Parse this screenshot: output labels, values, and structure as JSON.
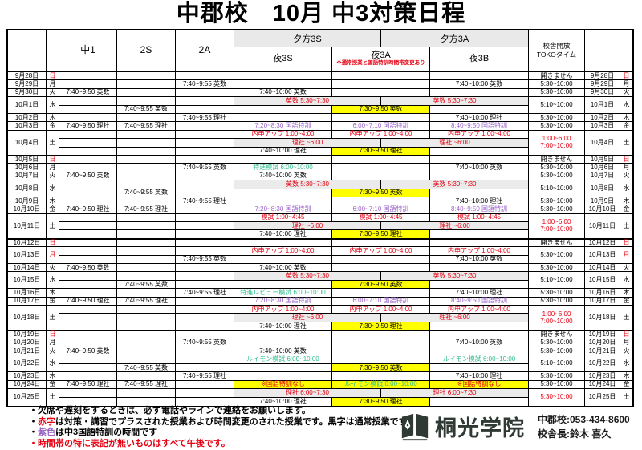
{
  "title": "中郡校　10月 中3対策日程",
  "header": {
    "class_cols": [
      "中1",
      "2S",
      "2A"
    ],
    "evening_groups": [
      "夕方3S",
      "夕方3A"
    ],
    "night_cols": [
      "夜3S",
      "夜3A",
      "夜3B"
    ],
    "night_3a_note": "※通常授業と国語特訓時間帯変更あり",
    "toko_line1": "校舎開放",
    "toko_line2": "TOKOタイム"
  },
  "colors": {
    "red": "#e60012",
    "purple": "#9a63c8",
    "green": "#2fbd8a",
    "yellow": "#ffff00",
    "gray_band": "#ebebeb",
    "header_gray": "#e9e9e9",
    "logo": "#2f3a34"
  },
  "days": [
    {
      "date": "9月28日",
      "dow": "日",
      "red_dow": true,
      "toko": {
        "lines": [
          "開きません"
        ]
      },
      "subrows": [
        {
          "n": {
            "type": "cols",
            "cells": [
              null,
              null,
              null
            ]
          }
        }
      ]
    },
    {
      "date": "9月29日",
      "dow": "月",
      "toko": {
        "lines": [
          "5:30~10:00"
        ]
      },
      "subrows": [
        {
          "a2": {
            "t": "7:40~9:55 英数"
          },
          "n": {
            "type": "cols",
            "cells": [
              null,
              null,
              {
                "t": "7:40~10:00 英数"
              }
            ]
          }
        }
      ]
    },
    {
      "date": "9月30日",
      "dow": "火",
      "toko": {
        "lines": [
          "5:30~10:00"
        ]
      },
      "subrows": [
        {
          "c1": {
            "t": "7:40~9:50 英数"
          },
          "n": {
            "type": "cols",
            "cells": [
              {
                "t": "7:40~10:00 英数"
              },
              null,
              null
            ]
          }
        }
      ]
    },
    {
      "date": "10月1日",
      "dow": "水",
      "toko": {
        "lines": [
          "5:10~10:00"
        ]
      },
      "subrows": [
        {
          "n": {
            "type": "split",
            "cells": [
              {
                "t": "英数 5:30~7:30",
                "c": "red",
                "bg": "gray"
              },
              {
                "t": "英数 5:30~7:30",
                "c": "red",
                "bg": "gray"
              }
            ]
          }
        },
        {
          "s2": {
            "t": "7:40~9:55 英数"
          },
          "n": {
            "type": "cols",
            "cells": [
              null,
              {
                "t": "7:30~9:50 英数",
                "bg": "yellow"
              },
              null
            ]
          }
        }
      ]
    },
    {
      "date": "10月2日",
      "dow": "木",
      "toko": {
        "lines": [
          "5:30~10:00"
        ]
      },
      "subrows": [
        {
          "a2": {
            "t": "7:40~9:55 理社"
          },
          "n": {
            "type": "cols",
            "cells": [
              null,
              null,
              {
                "t": "7:40~10:00 理社"
              }
            ]
          }
        }
      ]
    },
    {
      "date": "10月3日",
      "dow": "金",
      "toko": {
        "lines": [
          "5:30~10:00"
        ]
      },
      "subrows": [
        {
          "c1": {
            "t": "7:40~9:50 理社"
          },
          "s2": {
            "t": "7:40~9:55 理社"
          },
          "n": {
            "type": "cols",
            "cells": [
              {
                "t": "7:20~8:30 国語特訓",
                "c": "purple"
              },
              {
                "t": "6:00~7:10 国語特訓",
                "c": "purple"
              },
              {
                "t": "8:40~9:50 国語特訓",
                "c": "purple"
              }
            ]
          }
        }
      ]
    },
    {
      "date": "10月4日",
      "dow": "土",
      "toko": {
        "lines": [
          "1:00~6:00",
          "7:00~10:00"
        ],
        "red": true
      },
      "subrows": [
        {
          "n": {
            "type": "cols",
            "cells": [
              {
                "t": "内申アップ 1:00~4:00",
                "c": "red"
              },
              {
                "t": "内申アップ 1:00~4:00",
                "c": "red"
              },
              {
                "t": "内申アップ 1:00~4:00",
                "c": "red"
              }
            ]
          }
        },
        {
          "n": {
            "type": "split",
            "cells": [
              {
                "t": "理社 ~6:00",
                "c": "red",
                "bg": "gray"
              },
              {
                "t": "理社 ~6:00",
                "c": "red",
                "bg": "gray"
              }
            ]
          }
        },
        {
          "n": {
            "type": "cols",
            "cells": [
              {
                "t": "7:40~10:00 理社"
              },
              {
                "t": "7:30~9:50 理社",
                "bg": "yellow"
              },
              null
            ]
          }
        }
      ]
    },
    {
      "date": "10月5日",
      "dow": "日",
      "red_dow": true,
      "wk": true,
      "toko": {
        "lines": [
          "開きません"
        ]
      },
      "subrows": [
        {
          "n": {
            "type": "cols",
            "cells": [
              null,
              null,
              null
            ]
          }
        }
      ]
    },
    {
      "date": "10月6日",
      "dow": "月",
      "toko": {
        "lines": [
          "5:30~10:00"
        ]
      },
      "subrows": [
        {
          "a2": {
            "t": "7:40~9:55 英数"
          },
          "n": {
            "type": "cols",
            "cells": [
              {
                "t": "特進模試 6:00~10:00",
                "c": "green"
              },
              null,
              {
                "t": "7:40~10:00 英数"
              }
            ]
          }
        }
      ]
    },
    {
      "date": "10月7日",
      "dow": "火",
      "toko": {
        "lines": [
          "5:30~10:00"
        ]
      },
      "subrows": [
        {
          "c1": {
            "t": "7:40~9:50 英数"
          },
          "n": {
            "type": "cols",
            "cells": [
              {
                "t": "7:40~10:00 英数"
              },
              null,
              null
            ]
          }
        }
      ]
    },
    {
      "date": "10月8日",
      "dow": "水",
      "toko": {
        "lines": [
          "5:10~10:00"
        ]
      },
      "subrows": [
        {
          "n": {
            "type": "split",
            "cells": [
              {
                "t": "英数 5:30~7:30",
                "c": "red",
                "bg": "gray"
              },
              {
                "t": "英数 5:30~7:30",
                "c": "red",
                "bg": "gray"
              }
            ]
          }
        },
        {
          "s2": {
            "t": "7:40~9:55 英数"
          },
          "n": {
            "type": "cols",
            "cells": [
              null,
              {
                "t": "7:30~9:50 英数",
                "bg": "yellow"
              },
              null
            ]
          }
        }
      ]
    },
    {
      "date": "10月9日",
      "dow": "木",
      "toko": {
        "lines": [
          "5:30~10:00"
        ]
      },
      "subrows": [
        {
          "a2": {
            "t": "7:40~9:55 理社"
          },
          "n": {
            "type": "cols",
            "cells": [
              null,
              null,
              {
                "t": "7:40~10:00 理社"
              }
            ]
          }
        }
      ]
    },
    {
      "date": "10月10日",
      "dow": "金",
      "toko": {
        "lines": [
          "5:30~10:00"
        ]
      },
      "subrows": [
        {
          "c1": {
            "t": "7:40~9:50 理社"
          },
          "s2": {
            "t": "7:40~9:55 理社"
          },
          "n": {
            "type": "cols",
            "cells": [
              {
                "t": "7:20~8:30 国語特訓",
                "c": "purple"
              },
              {
                "t": "6:00~7:10 国語特訓",
                "c": "purple"
              },
              {
                "t": "8:40~9:50 国語特訓",
                "c": "purple"
              }
            ]
          }
        }
      ]
    },
    {
      "date": "10月11日",
      "dow": "土",
      "toko": {
        "lines": [
          "1:00~6:00",
          "7:00~10:00"
        ],
        "red": true
      },
      "subrows": [
        {
          "n": {
            "type": "cols",
            "cells": [
              {
                "t": "模試 1:00~4:45",
                "c": "red"
              },
              {
                "t": "模試 1:00~4:45",
                "c": "red"
              },
              {
                "t": "模試 1:00~4:45",
                "c": "red"
              }
            ]
          }
        },
        {
          "n": {
            "type": "split",
            "cells": [
              {
                "t": "理社 ~6:00",
                "c": "red",
                "bg": "gray"
              },
              {
                "t": "理社 ~6:00",
                "c": "red",
                "bg": "gray"
              }
            ]
          }
        },
        {
          "n": {
            "type": "cols",
            "cells": [
              {
                "t": "7:40~10:00 理社"
              },
              {
                "t": "7:30~9:50 理社",
                "bg": "yellow"
              },
              null
            ]
          }
        }
      ]
    },
    {
      "date": "10月12日",
      "dow": "日",
      "red_dow": true,
      "wk": true,
      "toko": {
        "lines": [
          "開きません"
        ]
      },
      "subrows": [
        {
          "n": {
            "type": "cols",
            "cells": [
              null,
              null,
              null
            ]
          }
        }
      ]
    },
    {
      "date": "10月13日",
      "dow": "月",
      "red_dow": true,
      "toko": {
        "lines": [
          "5:30~10:00"
        ]
      },
      "subrows": [
        {
          "n": {
            "type": "cols",
            "cells": [
              {
                "t": "内申アップ 1:00~4:00",
                "c": "red"
              },
              {
                "t": "内申アップ 1:00~4:00",
                "c": "red"
              },
              {
                "t": "内申アップ 1:00~4:00",
                "c": "red"
              }
            ]
          }
        },
        {
          "a2": {
            "t": "7:40~9:55 英数"
          },
          "n": {
            "type": "cols",
            "cells": [
              null,
              null,
              {
                "t": "7:40~10:00 英数"
              }
            ]
          }
        }
      ]
    },
    {
      "date": "10月14日",
      "dow": "火",
      "toko": {
        "lines": [
          "5:30~10:00"
        ]
      },
      "subrows": [
        {
          "c1": {
            "t": "7:40~9:50 英数"
          },
          "n": {
            "type": "cols",
            "cells": [
              {
                "t": "7:40~10:00 英数"
              },
              null,
              null
            ]
          }
        }
      ]
    },
    {
      "date": "10月15日",
      "dow": "水",
      "toko": {
        "lines": [
          "5:10~10:00"
        ]
      },
      "subrows": [
        {
          "n": {
            "type": "split",
            "cells": [
              {
                "t": "英数 5:30~7:30",
                "c": "red",
                "bg": "gray"
              },
              {
                "t": "英数 5:30~7:30",
                "c": "red",
                "bg": "gray"
              }
            ]
          }
        },
        {
          "s2": {
            "t": "7:40~9:55 英数"
          },
          "n": {
            "type": "cols",
            "cells": [
              null,
              {
                "t": "7:30~9:50 英数",
                "bg": "yellow"
              },
              null
            ]
          }
        }
      ]
    },
    {
      "date": "10月16日",
      "dow": "木",
      "toko": {
        "lines": [
          "5:30~10:00"
        ]
      },
      "subrows": [
        {
          "a2": {
            "t": "7:40~9:55 理社"
          },
          "n": {
            "type": "cols",
            "cells": [
              {
                "t": "特進レビュー模試 6:00~10:00",
                "c": "green"
              },
              null,
              {
                "t": "7:40~10:00 理社"
              }
            ]
          }
        }
      ]
    },
    {
      "date": "10月17日",
      "dow": "金",
      "toko": {
        "lines": [
          "5:30~10:00"
        ]
      },
      "subrows": [
        {
          "c1": {
            "t": "7:40~9:50 理社"
          },
          "s2": {
            "t": "7:40~9:55 理社"
          },
          "n": {
            "type": "cols",
            "cells": [
              {
                "t": "7:20~8:30 国語特訓",
                "c": "purple"
              },
              {
                "t": "6:00~7:10 国語特訓",
                "c": "purple"
              },
              {
                "t": "8:40~9:50 国語特訓",
                "c": "purple"
              }
            ]
          }
        }
      ]
    },
    {
      "date": "10月18日",
      "dow": "土",
      "toko": {
        "lines": [
          "1:00~6:00",
          "7:00~10:00"
        ],
        "red": true
      },
      "subrows": [
        {
          "n": {
            "type": "cols",
            "cells": [
              {
                "t": "内申アップ 1:00~4:00",
                "c": "red"
              },
              {
                "t": "内申アップ 1:00~4:00",
                "c": "red"
              },
              {
                "t": "内申アップ 1:00~4:00",
                "c": "red"
              }
            ]
          }
        },
        {
          "n": {
            "type": "split",
            "cells": [
              {
                "t": "理社 ~6:00",
                "c": "red",
                "bg": "gray"
              },
              {
                "t": "理社 ~6:00",
                "c": "red",
                "bg": "gray"
              }
            ]
          }
        },
        {
          "n": {
            "type": "cols",
            "cells": [
              {
                "t": "7:40~10:00 理社"
              },
              {
                "t": "7:30~9:50 理社",
                "bg": "yellow"
              },
              null
            ]
          }
        }
      ]
    },
    {
      "date": "10月19日",
      "dow": "日",
      "red_dow": true,
      "wk": true,
      "toko": {
        "lines": [
          "開きません"
        ]
      },
      "subrows": [
        {
          "n": {
            "type": "cols",
            "cells": [
              null,
              null,
              null
            ]
          }
        }
      ]
    },
    {
      "date": "10月20日",
      "dow": "月",
      "toko": {
        "lines": [
          "5:30~10:00"
        ]
      },
      "subrows": [
        {
          "a2": {
            "t": "7:40~9:55 英数"
          },
          "n": {
            "type": "cols",
            "cells": [
              null,
              null,
              {
                "t": "7:40~10:00 英数"
              }
            ]
          }
        }
      ]
    },
    {
      "date": "10月21日",
      "dow": "火",
      "toko": {
        "lines": [
          "5:30~10:00"
        ]
      },
      "subrows": [
        {
          "c1": {
            "t": "7:40~9:50 英数"
          },
          "n": {
            "type": "cols",
            "cells": [
              {
                "t": "7:40~10:00 英数"
              },
              null,
              null
            ]
          }
        }
      ]
    },
    {
      "date": "10月22日",
      "dow": "水",
      "toko": {
        "lines": [
          "5:10~10:00"
        ]
      },
      "subrows": [
        {
          "n": {
            "type": "cols",
            "cells": [
              {
                "t": "ルイモン模試 6:00~10:00",
                "c": "green"
              },
              null,
              {
                "t": "ルイモン模試 6:00~10:00",
                "c": "green"
              }
            ]
          }
        },
        {
          "s2": {
            "t": "7:40~9:55 英数"
          },
          "n": {
            "type": "cols",
            "cells": [
              null,
              {
                "t": "7:30~9:50 英数",
                "bg": "yellow"
              },
              null
            ]
          }
        }
      ]
    },
    {
      "date": "10月23日",
      "dow": "木",
      "toko": {
        "lines": [
          "5:30~10:00"
        ]
      },
      "subrows": [
        {
          "a2": {
            "t": "7:40~9:55 理社"
          },
          "n": {
            "type": "cols",
            "cells": [
              null,
              null,
              {
                "t": "7:40~10:00 理社"
              }
            ]
          }
        }
      ]
    },
    {
      "date": "10月24日",
      "dow": "金",
      "toko": {
        "lines": [
          "5:30~10:00"
        ]
      },
      "subrows": [
        {
          "c1": {
            "t": "7:40~9:50 理社"
          },
          "s2": {
            "t": "7:40~9:55 理社"
          },
          "n": {
            "type": "cols",
            "cells": [
              {
                "t": "※国語特訓なし",
                "c": "red",
                "bg": "yellow"
              },
              {
                "t": "ルイモン模試 6:00~10:00",
                "c": "green",
                "bg": "yellow"
              },
              {
                "t": "※国語特訓なし",
                "c": "red",
                "bg": "yellow"
              }
            ]
          }
        }
      ]
    },
    {
      "date": "10月25日",
      "dow": "土",
      "toko": {
        "lines": [
          "5:30~10:00"
        ],
        "red": true
      },
      "subrows": [
        {
          "n": {
            "type": "split",
            "cells": [
              {
                "t": "理社 6:00~7:30",
                "c": "red",
                "bg": "gray"
              },
              {
                "t": "理社 6:00~7:30",
                "c": "red",
                "bg": "gray"
              }
            ]
          }
        },
        {
          "n": {
            "type": "cols",
            "cells": [
              {
                "t": "7:40~10:00 理社"
              },
              {
                "t": "7:30~9:50 理社",
                "bg": "yellow"
              },
              null
            ]
          }
        }
      ]
    }
  ],
  "notes": [
    {
      "segments": [
        {
          "t": "・欠席や遅刻をするときは、必ず電話やラインで連絡をお願いします。"
        }
      ]
    },
    {
      "segments": [
        {
          "t": "・"
        },
        {
          "t": "赤字",
          "c": "red"
        },
        {
          "t": "は対策・講習でプラスされた授業および時間変更のされた授業です。黒字は通常授業です。"
        }
      ]
    },
    {
      "segments": [
        {
          "t": "・"
        },
        {
          "t": "紫色",
          "c": "purple"
        },
        {
          "t": "は中3国語特訓の時間です"
        }
      ]
    },
    {
      "segments": [
        {
          "t": "・時間帯の特に表記が無いものはすべて午後です。",
          "c": "red"
        }
      ]
    }
  ],
  "footer": {
    "logo_text": "桐光学院",
    "contact_line1": "中郡校:053-434-8600",
    "contact_line2": "校舎長:鈴木 喜久"
  }
}
